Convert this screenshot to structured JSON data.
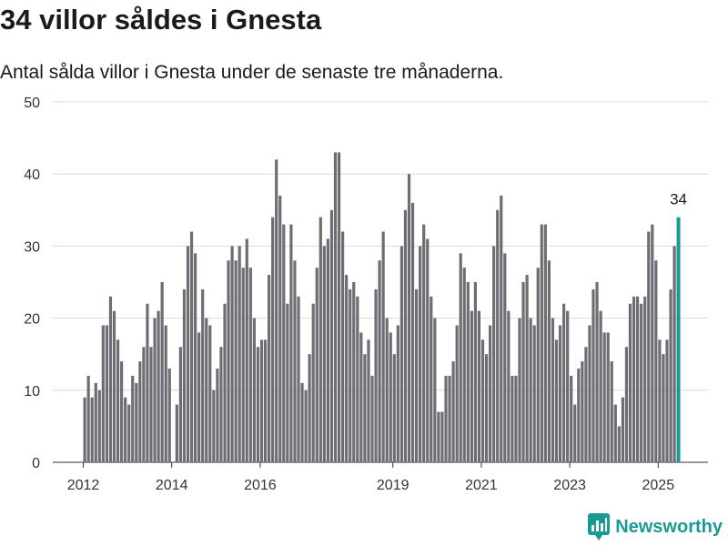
{
  "title": "34 villor såldes i Gnesta",
  "subtitle": "Antal sålda villor i Gnesta under de senaste tre månaderna.",
  "brand": {
    "name": "Newsworthy",
    "icon": "newsworthy-logo-icon"
  },
  "colors": {
    "bar": "#6e6d73",
    "highlight": "#1a9a94",
    "grid": "#d9d9d9"
  },
  "chart_data": {
    "type": "bar",
    "title": "",
    "xlabel": "",
    "ylabel": "",
    "ylim": [
      0,
      50
    ],
    "yticks": [
      0,
      10,
      20,
      30,
      40,
      50
    ],
    "xticks": [
      "2012",
      "2014",
      "2016",
      "2019",
      "2021",
      "2023",
      "2025"
    ],
    "grid": true,
    "highlight_label": "34",
    "values": [
      9,
      12,
      9,
      11,
      10,
      19,
      19,
      23,
      21,
      17,
      14,
      9,
      8,
      12,
      11,
      14,
      16,
      22,
      16,
      20,
      21,
      25,
      19,
      13,
      0,
      8,
      16,
      24,
      30,
      32,
      29,
      18,
      24,
      20,
      19,
      10,
      13,
      16,
      22,
      28,
      30,
      28,
      30,
      27,
      31,
      27,
      20,
      16,
      17,
      17,
      26,
      34,
      42,
      37,
      33,
      22,
      33,
      28,
      23,
      11,
      10,
      15,
      22,
      27,
      34,
      30,
      31,
      35,
      43,
      43,
      32,
      26,
      24,
      25,
      23,
      18,
      15,
      17,
      12,
      24,
      28,
      32,
      20,
      18,
      15,
      19,
      30,
      35,
      40,
      36,
      24,
      30,
      33,
      31,
      23,
      20,
      7,
      7,
      12,
      12,
      14,
      19,
      29,
      27,
      25,
      21,
      25,
      21,
      17,
      15,
      19,
      30,
      35,
      37,
      29,
      21,
      12,
      12,
      20,
      25,
      26,
      20,
      19,
      27,
      33,
      33,
      28,
      20,
      17,
      19,
      22,
      21,
      12,
      8,
      13,
      14,
      16,
      19,
      24,
      25,
      21,
      18,
      18,
      14,
      8,
      5,
      9,
      16,
      22,
      23,
      23,
      22,
      23,
      32,
      33,
      28,
      17,
      15,
      17,
      24,
      30,
      34
    ]
  }
}
